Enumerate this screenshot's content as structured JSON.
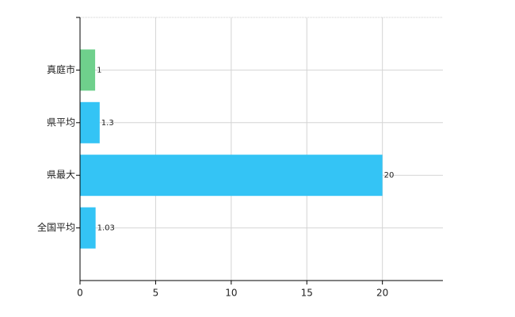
{
  "chart_data": {
    "type": "bar",
    "orientation": "horizontal",
    "categories": [
      "真庭市",
      "県平均",
      "県最大",
      "全国平均"
    ],
    "values": [
      1,
      1.3,
      20,
      1.03
    ],
    "colors": [
      "#6fd08c",
      "#34c4f5",
      "#34c4f5",
      "#34c4f5"
    ],
    "xlim": [
      0,
      24
    ],
    "xticks": [
      0,
      5,
      10,
      15,
      20
    ],
    "grid": true
  }
}
